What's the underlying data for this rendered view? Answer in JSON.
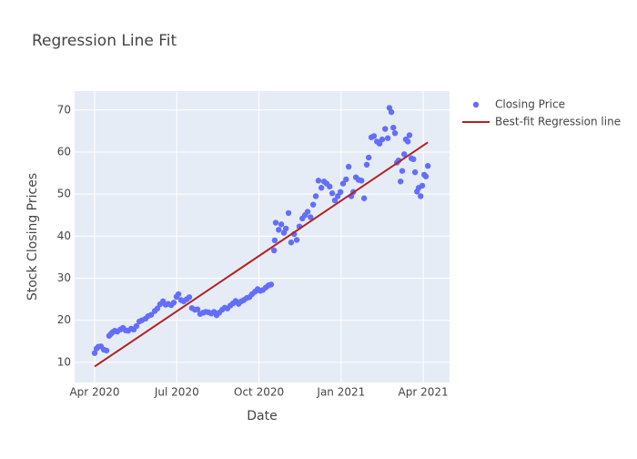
{
  "chart_data": {
    "type": "scatter",
    "title": "Regression Line Fit",
    "x_label": "Date",
    "y_label": "Stock Closing Prices",
    "xlim": [
      2020.189,
      2021.33
    ],
    "ylim": [
      5.2,
      74.5
    ],
    "xticks": [
      {
        "value": 2020.25,
        "label": "Apr 2020"
      },
      {
        "value": 2020.5,
        "label": "Jul 2020"
      },
      {
        "value": 2020.75,
        "label": "Oct 2020"
      },
      {
        "value": 2021.0,
        "label": "Jan 2021"
      },
      {
        "value": 2021.25,
        "label": "Apr 2021"
      }
    ],
    "yticks": [
      10,
      20,
      30,
      40,
      50,
      60,
      70
    ],
    "grid": true,
    "legend": "right",
    "series": [
      {
        "name": "Closing Price",
        "color": "#636efa",
        "mode": "markers",
        "x": [
          2020.25,
          2020.256,
          2020.261,
          2020.269,
          2020.278,
          2020.286,
          2020.294,
          2020.3,
          2020.305,
          2020.311,
          2020.319,
          2020.328,
          2020.336,
          2020.344,
          2020.352,
          2020.361,
          2020.369,
          2020.377,
          2020.386,
          2020.394,
          2020.405,
          2020.413,
          2020.422,
          2020.433,
          2020.441,
          2020.449,
          2020.458,
          2020.466,
          2020.474,
          2020.483,
          2020.491,
          2020.499,
          2020.505,
          2020.513,
          2020.521,
          2020.53,
          2020.538,
          2020.546,
          2020.555,
          2020.563,
          2020.571,
          2020.58,
          2020.588,
          2020.596,
          2020.605,
          2020.613,
          2020.621,
          2020.629,
          2020.638,
          2020.646,
          2020.654,
          2020.663,
          2020.671,
          2020.679,
          2020.688,
          2020.696,
          2020.704,
          2020.713,
          2020.721,
          2020.729,
          2020.738,
          2020.746,
          2020.754,
          2020.762,
          2020.771,
          2020.779,
          2020.787,
          2020.796,
          2020.798,
          2020.801,
          2020.81,
          2020.818,
          2020.826,
          2020.832,
          2020.84,
          2020.848,
          2020.857,
          2020.865,
          2020.873,
          2020.882,
          2020.89,
          2020.898,
          2020.907,
          2020.915,
          2020.923,
          2020.931,
          2020.94,
          2020.948,
          2020.956,
          2020.965,
          2020.973,
          2020.981,
          2020.99,
          2020.998,
          2021.006,
          2021.015,
          2021.023,
          2021.031,
          2021.037,
          2021.045,
          2021.053,
          2021.062,
          2021.07,
          2021.078,
          2021.084,
          2021.092,
          2021.1,
          2021.109,
          2021.117,
          2021.125,
          2021.134,
          2021.142,
          2021.147,
          2021.153,
          2021.159,
          2021.164,
          2021.17,
          2021.175,
          2021.181,
          2021.186,
          2021.192,
          2021.197,
          2021.203,
          2021.208,
          2021.214,
          2021.22,
          2021.225,
          2021.231,
          2021.236,
          2021.242,
          2021.247,
          2021.253,
          2021.258,
          2021.264
        ],
        "values": [
          12.2,
          13.3,
          13.7,
          13.8,
          13,
          12.8,
          16.3,
          16.8,
          17.2,
          17.5,
          17.3,
          17.8,
          18.2,
          17.6,
          17.5,
          18,
          17.8,
          18.6,
          19.7,
          20,
          20.4,
          21,
          21.3,
          22.2,
          22.8,
          23.8,
          24.5,
          23.7,
          23.9,
          23.6,
          24.2,
          25.6,
          26.2,
          24.8,
          24.5,
          25,
          25.5,
          22.9,
          22.5,
          22.6,
          21.5,
          21.8,
          22,
          21.9,
          21.6,
          22,
          21.2,
          21.8,
          22.5,
          23,
          22.8,
          23.5,
          24,
          24.6,
          23.9,
          24.5,
          24.8,
          25.3,
          25.5,
          26.2,
          26.8,
          27.4,
          27,
          27.2,
          27.8,
          28.3,
          28.5,
          36.6,
          39,
          43.2,
          41.5,
          42.8,
          40.8,
          41.8,
          45.5,
          38.5,
          40.5,
          39.1,
          42.3,
          44.2,
          45,
          45.8,
          44.5,
          47.5,
          49.5,
          53.2,
          51.5,
          53,
          52.5,
          51.8,
          50.2,
          48.5,
          49.5,
          50.5,
          52.5,
          53.5,
          56.5,
          49.5,
          50.5,
          54,
          53.4,
          53.2,
          49,
          57,
          58.7,
          63.5,
          63.8,
          62.5,
          62,
          63,
          65.5,
          63.3,
          70.5,
          69.5,
          65.8,
          64.5,
          57.5,
          58,
          53,
          55.5,
          59.5,
          63,
          62.5,
          64,
          58.5,
          58.3,
          55.2,
          50.6,
          51.5,
          49.5,
          52,
          54.6,
          54.2,
          56.7
        ]
      },
      {
        "name": "Best-fit Regression line",
        "color": "#b22222",
        "mode": "lines",
        "x": [
          2020.25,
          2021.264
        ],
        "values": [
          9,
          62.3
        ]
      }
    ]
  }
}
